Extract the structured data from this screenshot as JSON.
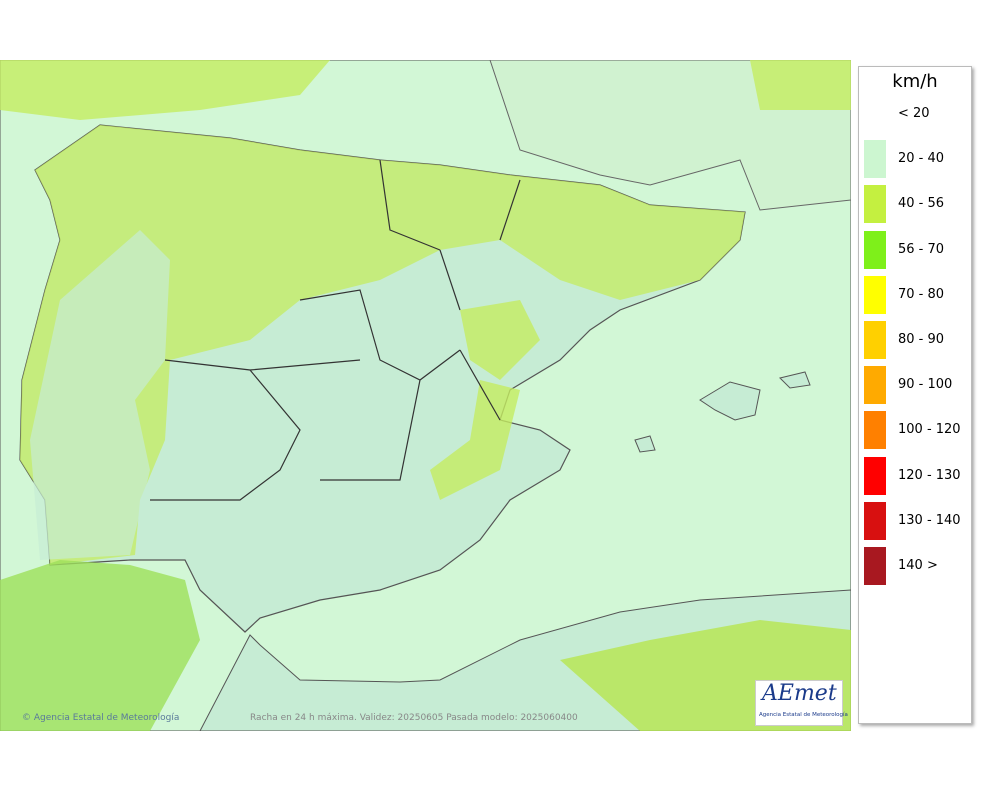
{
  "legend": {
    "title": "km/h",
    "items": [
      {
        "label": "< 20",
        "color": "#ffffff"
      },
      {
        "label": "20 - 40",
        "color": "#ccf6d0"
      },
      {
        "label": "40 - 56",
        "color": "#c4f040"
      },
      {
        "label": "56 - 70",
        "color": "#7ef01a"
      },
      {
        "label": "70 - 80",
        "color": "#ffff00"
      },
      {
        "label": "80 - 90",
        "color": "#ffd000"
      },
      {
        "label": "90 - 100",
        "color": "#ffaa00"
      },
      {
        "label": "100 - 120",
        "color": "#ff8000"
      },
      {
        "label": "120 - 130",
        "color": "#ff0000"
      },
      {
        "label": "130 - 140",
        "color": "#d81010"
      },
      {
        "label": "140 >",
        "color": "#a81820"
      }
    ]
  },
  "footer": {
    "credit": "© Agencia Estatal de Meteorología",
    "caption": "Racha en 24 h máxima. Validez: 20250605 Pasada modelo: 2025060400"
  },
  "logo": {
    "word": "AEmet",
    "subtitle": "Agencia Estatal de Meteorología"
  }
}
